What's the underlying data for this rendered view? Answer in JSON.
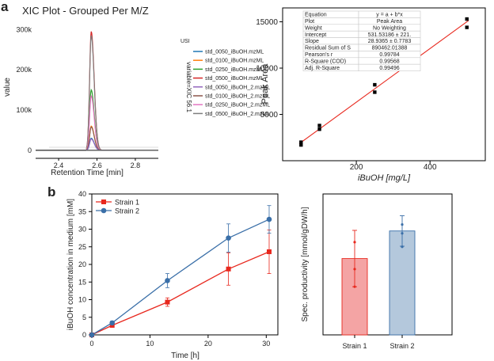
{
  "panels": {
    "a_label": "a",
    "b_label": "b"
  },
  "xic": {
    "title": "XIC Plot - Grouped Per M/Z",
    "xlabel": "Retention Time [min]",
    "ylabel": "value",
    "legend_title": "USI",
    "legend_side_label": "variable=XIC 56.1",
    "x_ticks": [
      "2.4",
      "2.6",
      "2.8"
    ],
    "y_ticks": [
      "0",
      "100k",
      "200k",
      "300k"
    ]
  },
  "calib": {
    "xlabel": "iBuOH [mg/L]",
    "ylabel": "Peak Area",
    "x_ticks": [
      "200",
      "400"
    ],
    "y_ticks": [
      "5000",
      "10000",
      "15000"
    ],
    "fit_color": "#e8281e",
    "table": [
      {
        "k": "Equation",
        "v": "y = a + b*x"
      },
      {
        "k": "Plot",
        "v": "Peak Area"
      },
      {
        "k": "Weight",
        "v": "No Weighting"
      },
      {
        "k": "Intercept",
        "v": "531.53186 ± 221."
      },
      {
        "k": "Slope",
        "v": "28.9365 ± 0.7783"
      },
      {
        "k": "Residual Sum of S",
        "v": "890462.01388"
      },
      {
        "k": "Pearson's r",
        "v": "0.99784"
      },
      {
        "k": "R-Square (COD)",
        "v": "0.99568"
      },
      {
        "k": "Adj. R-Square",
        "v": "0.99496"
      }
    ]
  },
  "conc": {
    "xlabel": "Time [h]",
    "ylabel": "iBuOH concentration in medium [mM]",
    "x_ticks": [
      "0",
      "10",
      "20",
      "30"
    ],
    "y_ticks": [
      "0",
      "5",
      "10",
      "15",
      "20",
      "25",
      "30",
      "35",
      "40"
    ]
  },
  "prod": {
    "ylabel": "Spec. productivity [mmol/gDW/h]",
    "y_ticks": [],
    "categories": [
      "Strain 1",
      "Strain 2"
    ]
  },
  "chart_data": [
    {
      "type": "line",
      "title": "XIC Plot - Grouped Per M/Z",
      "xlabel": "Retention Time [min]",
      "ylabel": "value",
      "xlim": [
        2.28,
        2.92
      ],
      "ylim": [
        -20000,
        330000
      ],
      "legend_title": "USI",
      "legend_position": "right",
      "peak_center": 2.57,
      "series": [
        {
          "name": "std_0050_iBuOH.mzML",
          "color": "#1f77b4",
          "peak": 30000
        },
        {
          "name": "std_0100_iBuOH.mzML",
          "color": "#ff7f0e",
          "peak": 60000
        },
        {
          "name": "std_0250_iBuOH.mzML",
          "color": "#2ca02c",
          "peak": 150000
        },
        {
          "name": "std_0500_iBuOH.mzML",
          "color": "#d62728",
          "peak": 295000
        },
        {
          "name": "std_0050_iBuOH_2.mzML",
          "color": "#9467bd",
          "peak": 28000
        },
        {
          "name": "std_0100_iBuOH_2.mzML",
          "color": "#8c564b",
          "peak": 58000
        },
        {
          "name": "std_0250_iBuOH_2.mzML",
          "color": "#e377c2",
          "peak": 135000
        },
        {
          "name": "std_0500_iBuOH_2.mzML",
          "color": "#7f7f7f",
          "peak": 285000
        }
      ]
    },
    {
      "type": "scatter",
      "xlabel": "iBuOH [mg/L]",
      "ylabel": "Peak Area",
      "xlim": [
        0,
        550
      ],
      "ylim": [
        0,
        16500
      ],
      "x": [
        50,
        50,
        100,
        100,
        250,
        250,
        500,
        500
      ],
      "y": [
        1700,
        2000,
        3400,
        3800,
        7400,
        8200,
        14400,
        15300
      ],
      "fit": {
        "intercept": 531.53186,
        "slope": 28.9365,
        "x_range": [
          45,
          505
        ]
      }
    },
    {
      "type": "line",
      "xlabel": "Time [h]",
      "ylabel": "iBuOH concentration in medium [mM]",
      "xlim": [
        0,
        32
      ],
      "ylim": [
        0,
        40
      ],
      "legend_position": "top-left",
      "x": [
        0,
        3.5,
        13,
        23.5,
        30.5
      ],
      "series": [
        {
          "name": "Strain 1",
          "color": "#e8281e",
          "marker": "square",
          "values": [
            0,
            2.7,
            9.3,
            18.7,
            23.6
          ],
          "err": [
            0,
            0.4,
            1.2,
            4.6,
            6.2
          ]
        },
        {
          "name": "Strain 2",
          "color": "#3a6fa8",
          "marker": "circle",
          "values": [
            0,
            3.4,
            15.4,
            27.5,
            32.8
          ],
          "err": [
            0,
            0.5,
            2.0,
            4.0,
            3.9
          ]
        }
      ]
    },
    {
      "type": "bar",
      "ylabel": "Spec. productivity [mmol/gDW/h]",
      "categories": [
        "Strain 1",
        "Strain 2"
      ],
      "values": [
        1.3,
        1.77
      ],
      "err": [
        0.48,
        0.26
      ],
      "points": [
        [
          1.58,
          1.12,
          0.82
        ],
        [
          1.88,
          1.73,
          1.5
        ]
      ],
      "colors": [
        "#f4a4a4",
        "#b4c8dc"
      ],
      "edge_colors": [
        "#e8281e",
        "#3a6fa8"
      ],
      "ylim": [
        0,
        2.4
      ]
    }
  ]
}
